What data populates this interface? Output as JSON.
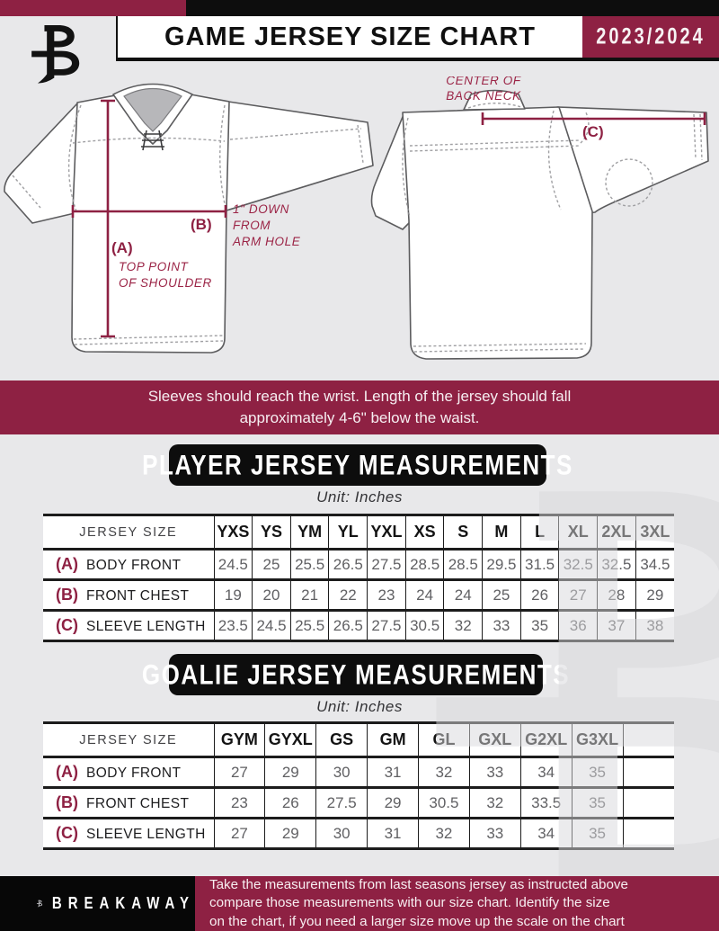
{
  "colors": {
    "maroon": "#8e2143",
    "bar_black": "#0d0d0d",
    "page_bg": "#e8e8ea"
  },
  "header": {
    "title": "GAME JERSEY SIZE CHART",
    "season": "2023/2024"
  },
  "diagram": {
    "front": {
      "a_key": "(A)",
      "a_note1": "TOP POINT",
      "a_note2": "OF SHOULDER",
      "b_key": "(B)",
      "b_note1": "1\" DOWN",
      "b_note2": "FROM",
      "b_note3": "ARM HOLE"
    },
    "back": {
      "neck_note1": "CENTER OF",
      "neck_note2": "BACK NECK",
      "c_key": "(C)"
    }
  },
  "banner": {
    "line1": "Sleeves should reach the wrist. Length of the jersey should fall",
    "line2": "approximately 4-6\" below the waist."
  },
  "player_table": {
    "title": "PLAYER JERSEY MEASUREMENTS",
    "unit": "Unit: Inches",
    "header_label": "JERSEY SIZE",
    "sizes": [
      "YXS",
      "YS",
      "YM",
      "YL",
      "YXL",
      "XS",
      "S",
      "M",
      "L",
      "XL",
      "2XL",
      "3XL"
    ],
    "rows": [
      {
        "key": "(A)",
        "label": "BODY FRONT",
        "values": [
          "24.5",
          "25",
          "25.5",
          "26.5",
          "27.5",
          "28.5",
          "28.5",
          "29.5",
          "31.5",
          "32.5",
          "32.5",
          "34.5"
        ]
      },
      {
        "key": "(B)",
        "label": "FRONT CHEST",
        "values": [
          "19",
          "20",
          "21",
          "22",
          "23",
          "24",
          "24",
          "25",
          "26",
          "27",
          "28",
          "29"
        ]
      },
      {
        "key": "(C)",
        "label": "SLEEVE LENGTH",
        "values": [
          "23.5",
          "24.5",
          "25.5",
          "26.5",
          "27.5",
          "30.5",
          "32",
          "33",
          "35",
          "36",
          "37",
          "38"
        ]
      }
    ]
  },
  "goalie_table": {
    "title": "GOALIE JERSEY MEASUREMENTS",
    "unit": "Unit: Inches",
    "header_label": "JERSEY SIZE",
    "sizes": [
      "GYM",
      "GYXL",
      "GS",
      "GM",
      "GL",
      "GXL",
      "G2XL",
      "G3XL",
      ""
    ],
    "rows": [
      {
        "key": "(A)",
        "label": "BODY FRONT",
        "values": [
          "27",
          "29",
          "30",
          "31",
          "32",
          "33",
          "34",
          "35",
          ""
        ]
      },
      {
        "key": "(B)",
        "label": "FRONT CHEST",
        "values": [
          "23",
          "26",
          "27.5",
          "29",
          "30.5",
          "32",
          "33.5",
          "35",
          ""
        ]
      },
      {
        "key": "(C)",
        "label": "SLEEVE LENGTH",
        "values": [
          "27",
          "29",
          "30",
          "31",
          "32",
          "33",
          "34",
          "35",
          ""
        ]
      }
    ]
  },
  "footer": {
    "brand": "BREAKAWAY",
    "line1": "Take the measurements from last seasons jersey as instructed above",
    "line2": "compare those measurements  with our size chart. Identify the size",
    "line3": "on the chart, if you need a larger size move up the scale on the chart"
  }
}
